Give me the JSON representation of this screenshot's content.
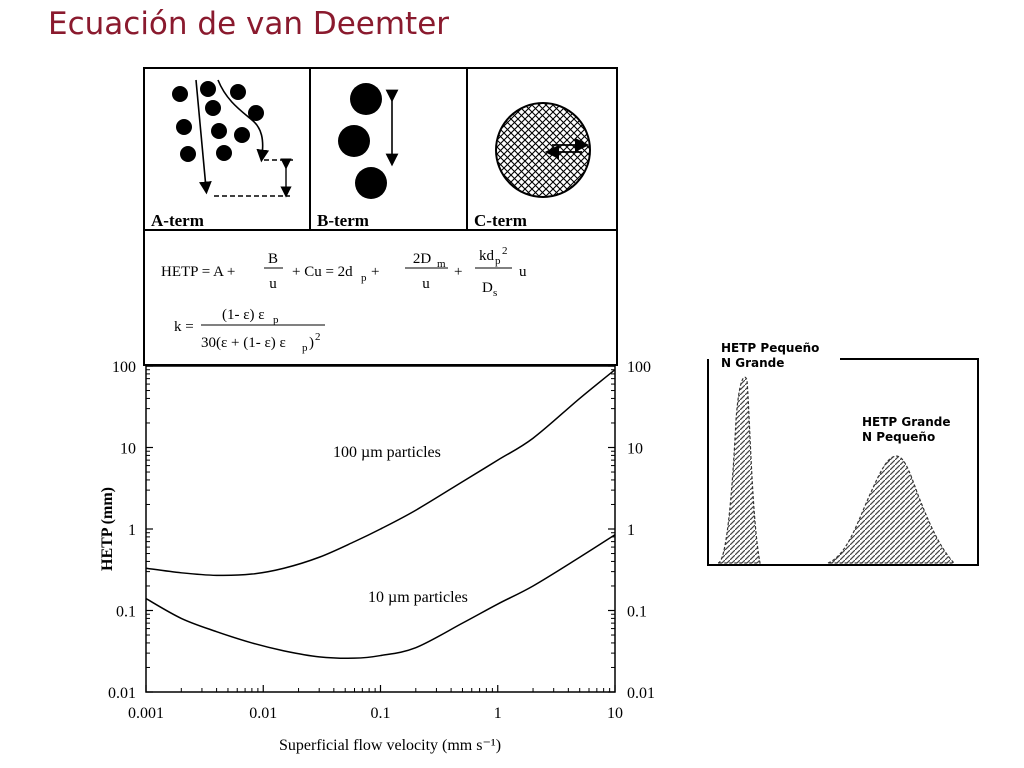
{
  "slide": {
    "title": "Ecuación de van Deemter"
  },
  "terms": {
    "a_label": "A-term",
    "b_label": "B-term",
    "c_label": "C-term"
  },
  "equations": {
    "hetp": "HETP = A + B/u + Cu = 2dp + 2Dm/u + kdp²/Ds u",
    "k": "k = (1- ε) εp / 30(ε + (1- ε) εp)²"
  },
  "chart_data": {
    "type": "line",
    "xlabel": "Superficial flow velocity (mm s⁻¹)",
    "ylabel": "HETP (mm)",
    "xscale": "log",
    "yscale": "log",
    "xlim": [
      0.001,
      10
    ],
    "ylim": [
      0.01,
      100
    ],
    "x_ticks": [
      "0.001",
      "0.01",
      "0.1",
      "1",
      "10"
    ],
    "y_ticks": [
      "0.01",
      "0.1",
      "1",
      "10",
      "100"
    ],
    "series": [
      {
        "name": "100 µm particles",
        "x": [
          0.001,
          0.002,
          0.004,
          0.008,
          0.015,
          0.03,
          0.06,
          0.1,
          0.2,
          0.5,
          1,
          2,
          5,
          10
        ],
        "y": [
          0.33,
          0.29,
          0.27,
          0.28,
          0.33,
          0.45,
          0.7,
          1.0,
          1.7,
          3.8,
          7,
          13,
          40,
          90
        ]
      },
      {
        "name": "10 µm particles",
        "x": [
          0.001,
          0.002,
          0.004,
          0.008,
          0.015,
          0.03,
          0.06,
          0.1,
          0.2,
          0.5,
          1,
          2,
          5,
          10
        ],
        "y": [
          0.14,
          0.08,
          0.055,
          0.04,
          0.032,
          0.027,
          0.026,
          0.028,
          0.035,
          0.07,
          0.12,
          0.2,
          0.45,
          0.85
        ]
      }
    ],
    "grid": false
  },
  "peaks": {
    "narrow_label_1": "HETP Pequeño",
    "narrow_label_2": "N Grande",
    "broad_label_1": "HETP Grande",
    "broad_label_2": "N Pequeño"
  },
  "icons": [
    "packed-particles-icon",
    "diffusion-arrow-icon",
    "porous-particle-icon"
  ]
}
